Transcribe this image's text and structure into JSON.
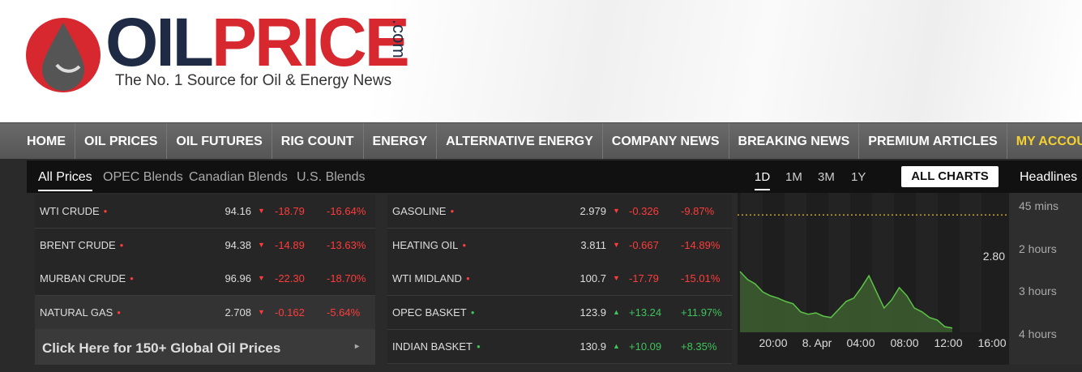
{
  "header": {
    "logo_part_1": "OIL",
    "logo_part_2": "PRICE",
    "logo_suffix": ".com",
    "tagline": "The No. 1 Source for Oil & Energy News"
  },
  "nav": [
    "HOME",
    "OIL PRICES",
    "OIL FUTURES",
    "RIG COUNT",
    "ENERGY",
    "ALTERNATIVE ENERGY",
    "COMPANY NEWS",
    "BREAKING NEWS",
    "PREMIUM ARTICLES",
    "MY ACCOUNT"
  ],
  "tabs": [
    "All Prices",
    "OPEC Blends",
    "Canadian Blends",
    "U.S. Blends"
  ],
  "prices_left": [
    {
      "name": "WTI CRUDE",
      "price": "94.16",
      "change": "-18.79",
      "percent": "-16.64%"
    },
    {
      "name": "BRENT CRUDE",
      "price": "94.38",
      "change": "-14.89",
      "percent": "-13.63%"
    },
    {
      "name": "MURBAN CRUDE",
      "price": "96.96",
      "change": "-22.30",
      "percent": "-18.70%"
    },
    {
      "name": "NATURAL GAS",
      "price": "2.708",
      "change": "-0.162",
      "percent": "-5.64%"
    }
  ],
  "prices_right": [
    {
      "name": "GASOLINE",
      "price": "2.979",
      "change": "-0.326",
      "percent": "-9.87%"
    },
    {
      "name": "HEATING OIL",
      "price": "3.811",
      "change": "-0.667",
      "percent": "-14.89%"
    },
    {
      "name": "WTI MIDLAND",
      "price": "100.7",
      "change": "-17.79",
      "percent": "-15.01%"
    },
    {
      "name": "OPEC BASKET",
      "price": "123.9",
      "change": "+13.24",
      "percent": "+11.97%"
    },
    {
      "name": "INDIAN BASKET",
      "price": "130.9",
      "change": "+10.09",
      "percent": "+8.35%"
    }
  ],
  "link": "Click Here for 150+ Global Oil Prices",
  "chart": {
    "ranges": [
      "1D",
      "1M",
      "3M",
      "1Y"
    ],
    "all_charts": "ALL CHARTS",
    "ylim": [
      2.64,
      2.93
    ],
    "yticks": [
      {
        "value": 2.8,
        "label": "2.80"
      }
    ],
    "reference": 2.887,
    "x_labels": [
      "20:00",
      "8. Apr",
      "04:00",
      "08:00",
      "12:00",
      "16:00"
    ],
    "values": [
      2.768,
      2.751,
      2.742,
      2.725,
      2.717,
      2.712,
      2.705,
      2.7,
      2.683,
      2.678,
      2.681,
      2.674,
      2.671,
      2.688,
      2.705,
      2.712,
      2.734,
      2.759,
      2.725,
      2.691,
      2.708,
      2.734,
      2.717,
      2.691,
      2.683,
      2.671,
      2.666,
      2.652,
      2.649
    ]
  },
  "headlines": {
    "title": "Headlines",
    "times": [
      "45 mins",
      "2 hours",
      "3 hours",
      "4 hours"
    ]
  }
}
